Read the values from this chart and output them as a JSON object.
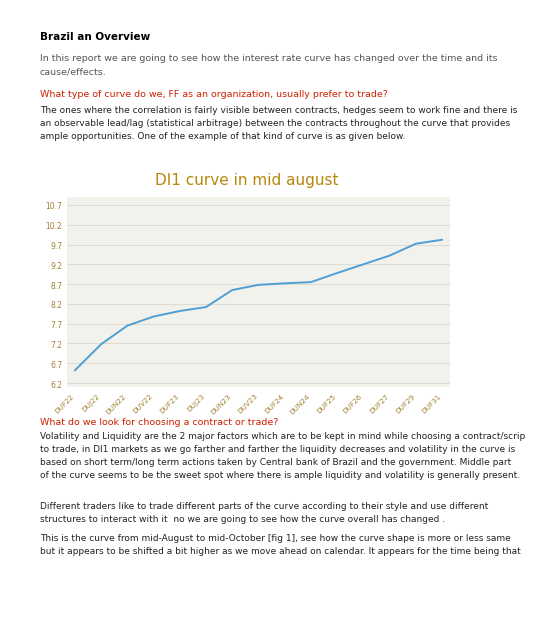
{
  "title": "Brazil an Overview",
  "intro_text": "In this report we are going to see how the interest rate curve has changed over the time and its\ncause/effects.",
  "question1": "What type of curve do we, FF as an organization, usually prefer to trade?",
  "body1": "The ones where the correlation is fairly visible between contracts, hedges seem to work fine and there is\nan observable lead/lag (statistical arbitrage) between the contracts throughout the curve that provides\nample opportunities. One of the example of that kind of curve is as given below.",
  "chart_title": "DI1 curve in mid august",
  "x_labels": [
    "DUF22",
    "DUJ22",
    "DUN22",
    "DUV22",
    "DUF23",
    "DUJ23",
    "DUN23",
    "DUV23",
    "DUF24",
    "DUN24",
    "DUF25",
    "DUF26",
    "DUF27",
    "DUF29",
    "DUF31"
  ],
  "y_values": [
    6.52,
    7.18,
    7.65,
    7.88,
    8.02,
    8.12,
    8.55,
    8.68,
    8.72,
    8.75,
    8.98,
    9.2,
    9.42,
    9.72,
    9.82
  ],
  "y_ticks": [
    6.2,
    6.7,
    7.2,
    7.7,
    8.2,
    8.7,
    9.2,
    9.7,
    10.2,
    10.7
  ],
  "ylim": [
    6.1,
    10.9
  ],
  "line_color": "#4f9fd4",
  "chart_bg": "#f2f2ed",
  "page_bg": "#ffffff",
  "title_color": "#000000",
  "question_color": "#cc2200",
  "body_color": "#222222",
  "intro_color": "#555555",
  "chart_title_color": "#b8860b",
  "ytick_color": "#a08030",
  "xtick_color": "#a08030",
  "gridline_color": "#d8d8d0",
  "question2": "What do we look for choosing a contract or trade?",
  "body2": "Volatility and Liquidity are the 2 major factors which are to be kept in mind while choosing a contract/scrip\nto trade, in DI1 markets as we go farther and farther the liquidity decreases and volatility in the curve is\nbased on short term/long term actions taken by Central bank of Brazil and the government. Middle part\nof the curve seems to be the sweet spot where there is ample liquidity and volatility is generally present.",
  "body3": "Different traders like to trade different parts of the curve according to their style and use different\nstructures to interact with it  no we are going to see how the curve overall has changed .",
  "body4": "This is the curve from mid-August to mid-October [fig 1], see how the curve shape is more or less same\nbut it appears to be shifted a bit higher as we move ahead on calendar. It appears for the time being that"
}
